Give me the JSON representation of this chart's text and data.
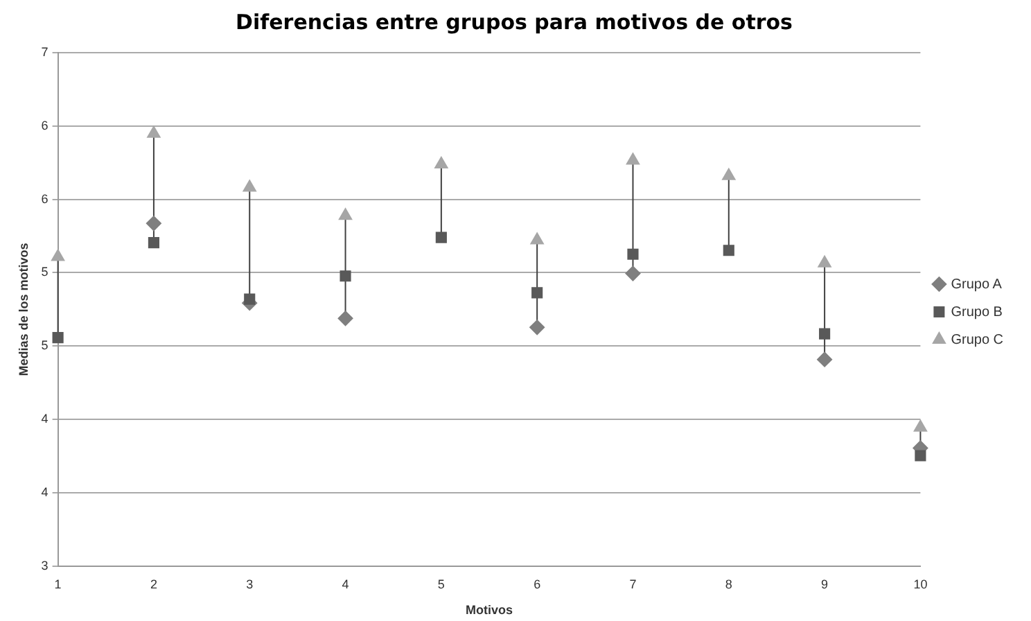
{
  "chart_data": {
    "type": "scatter",
    "title": "Diferencias entre grupos para motivos de otros",
    "xlabel": "Motivos",
    "ylabel": "Medias de los motivos",
    "categories": [
      "1",
      "2",
      "3",
      "4",
      "5",
      "6",
      "7",
      "8",
      "9",
      "10"
    ],
    "series": [
      {
        "name": "Grupo A",
        "color": "#7f7f7f",
        "marker": "diamond",
        "values": [
          null,
          5.67,
          5.05,
          4.93,
          null,
          4.86,
          5.28,
          null,
          4.61,
          3.92
        ]
      },
      {
        "name": "Grupo B",
        "color": "#595959",
        "marker": "square",
        "values": [
          4.78,
          5.52,
          5.08,
          5.26,
          5.56,
          5.13,
          5.43,
          5.46,
          4.81,
          3.86
        ]
      },
      {
        "name": "Grupo C",
        "color": "#a6a6a6",
        "marker": "triangle",
        "values": [
          5.41,
          6.37,
          5.95,
          5.73,
          6.13,
          5.54,
          6.16,
          6.04,
          5.36,
          4.08
        ]
      }
    ],
    "ylim": [
      3,
      7
    ],
    "yticks": [
      3,
      {
        "value": 3.571,
        "label": "4"
      },
      {
        "value": 4.143,
        "label": "4"
      },
      {
        "value": 4.714,
        "label": "5"
      },
      {
        "value": 5.286,
        "label": "5"
      },
      {
        "value": 5.857,
        "label": "6"
      },
      {
        "value": 6.429,
        "label": "6"
      },
      7
    ],
    "grid": "y",
    "legend": "right"
  }
}
